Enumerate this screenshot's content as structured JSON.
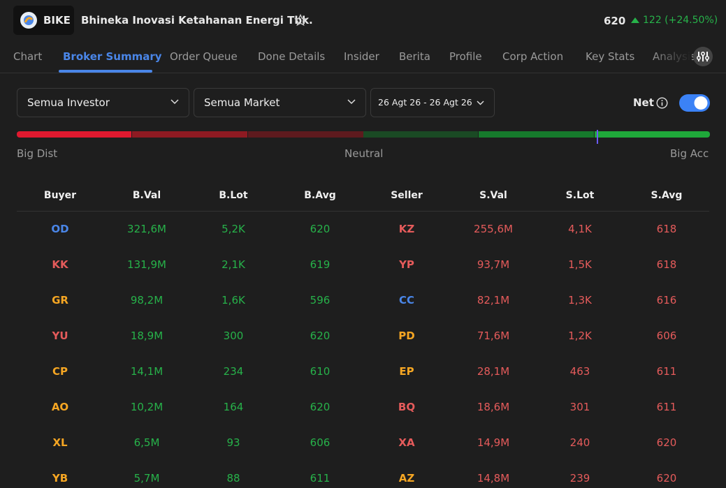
{
  "header": {
    "ticker": "BIKE",
    "name": "Bhineka Inovasi Ketahanan Energi Tbk.",
    "price": "620",
    "change": "122 (+24.50%)"
  },
  "tabs": [
    "Chart",
    "Broker Summary",
    "Order Queue",
    "Done Details",
    "Insider",
    "Berita",
    "Profile",
    "Corp Action",
    "Key Stats",
    "Analysis"
  ],
  "filters": {
    "investor": "Semua Investor",
    "market": "Semua Market",
    "date": "26 Agt 26 - 26 Agt 26",
    "net": "Net"
  },
  "meter": {
    "left": "Big Dist",
    "center": "Neutral",
    "right": "Big Acc"
  },
  "table": {
    "headers": [
      "Buyer",
      "B.Val",
      "B.Lot",
      "B.Avg",
      "Seller",
      "S.Val",
      "S.Lot",
      "S.Avg"
    ],
    "rows": [
      [
        "OD",
        "321,6M",
        "5,2K",
        "620",
        "KZ",
        "255,6M",
        "4,1K",
        "618"
      ],
      [
        "KK",
        "131,9M",
        "2,1K",
        "619",
        "YP",
        "93,7M",
        "1,5K",
        "618"
      ],
      [
        "GR",
        "98,2M",
        "1,6K",
        "596",
        "CC",
        "82,1M",
        "1,3K",
        "616"
      ],
      [
        "YU",
        "18,9M",
        "300",
        "620",
        "PD",
        "71,6M",
        "1,2K",
        "606"
      ],
      [
        "CP",
        "14,1M",
        "234",
        "610",
        "EP",
        "28,1M",
        "463",
        "611"
      ],
      [
        "AO",
        "10,2M",
        "164",
        "620",
        "BQ",
        "18,6M",
        "301",
        "611"
      ],
      [
        "XL",
        "6,5M",
        "93",
        "606",
        "XA",
        "14,9M",
        "240",
        "620"
      ],
      [
        "YB",
        "5,7M",
        "88",
        "611",
        "AZ",
        "14,8M",
        "239",
        "620"
      ]
    ],
    "buyer_colors": [
      "#4a86e8",
      "#e55b5b",
      "#f5a623",
      "#e55b5b",
      "#f5a623",
      "#f5a623",
      "#f5a623",
      "#f5a623"
    ],
    "seller_colors": [
      "#e55b5b",
      "#e55b5b",
      "#4a86e8",
      "#f5a623",
      "#f5a623",
      "#e55b5b",
      "#e55b5b",
      "#f5a623"
    ]
  }
}
